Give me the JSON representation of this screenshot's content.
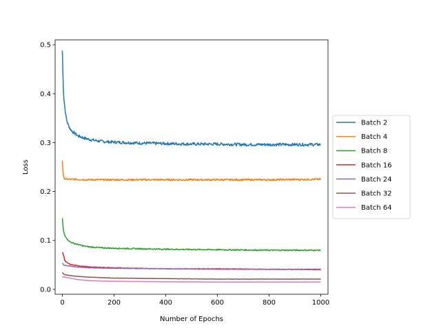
{
  "chart_data": {
    "type": "line",
    "xlabel": "Number of Epochs",
    "ylabel": "Loss",
    "xlim": [
      -28,
      1028
    ],
    "ylim": [
      -0.01,
      0.51
    ],
    "xticks": [
      0,
      200,
      400,
      600,
      800,
      1000
    ],
    "yticks": [
      0.0,
      0.1,
      0.2,
      0.3,
      0.4,
      0.5
    ],
    "ytick_labels": [
      "0.0",
      "0.1",
      "0.2",
      "0.3",
      "0.4",
      "0.5"
    ],
    "grid": false,
    "legend_position": "outside-right",
    "series": [
      {
        "name": "Batch 2",
        "color": "#1f77b4",
        "x": [
          0,
          3,
          6,
          10,
          15,
          20,
          30,
          40,
          50,
          60,
          80,
          100,
          130,
          160,
          200,
          250,
          300,
          400,
          500,
          600,
          700,
          800,
          900,
          1000
        ],
        "values": [
          0.488,
          0.42,
          0.39,
          0.37,
          0.35,
          0.34,
          0.328,
          0.322,
          0.318,
          0.314,
          0.31,
          0.307,
          0.304,
          0.302,
          0.301,
          0.3,
          0.299,
          0.298,
          0.297,
          0.297,
          0.296,
          0.296,
          0.296,
          0.296
        ],
        "noise": 0.003
      },
      {
        "name": "Batch 4",
        "color": "#ff7f0e",
        "x": [
          0,
          3,
          6,
          10,
          20,
          50,
          100,
          200,
          400,
          600,
          800,
          1000
        ],
        "values": [
          0.264,
          0.235,
          0.228,
          0.226,
          0.225,
          0.225,
          0.224,
          0.224,
          0.224,
          0.224,
          0.224,
          0.225
        ],
        "noise": 0.0018
      },
      {
        "name": "Batch 8",
        "color": "#2ca02c",
        "x": [
          0,
          3,
          6,
          10,
          20,
          30,
          50,
          80,
          100,
          150,
          200,
          300,
          400,
          600,
          800,
          1000
        ],
        "values": [
          0.145,
          0.125,
          0.115,
          0.11,
          0.102,
          0.097,
          0.093,
          0.089,
          0.087,
          0.085,
          0.084,
          0.083,
          0.082,
          0.081,
          0.08,
          0.08
        ],
        "noise": 0.0012
      },
      {
        "name": "Batch 16",
        "color": "#d62728",
        "x": [
          0,
          5,
          10,
          20,
          30,
          50,
          80,
          100,
          150,
          200,
          300,
          400,
          600,
          800,
          1000
        ],
        "values": [
          0.076,
          0.07,
          0.058,
          0.054,
          0.051,
          0.049,
          0.047,
          0.046,
          0.045,
          0.044,
          0.043,
          0.042,
          0.042,
          0.041,
          0.041
        ],
        "noise": 0.0006
      },
      {
        "name": "Batch 24",
        "color": "#9467bd",
        "x": [
          0,
          5,
          10,
          20,
          50,
          100,
          200,
          400,
          600,
          800,
          1000
        ],
        "values": [
          0.054,
          0.05,
          0.049,
          0.048,
          0.046,
          0.044,
          0.043,
          0.042,
          0.041,
          0.041,
          0.04
        ],
        "noise": 0.0004
      },
      {
        "name": "Batch 32",
        "color": "#8c564b",
        "x": [
          0,
          5,
          10,
          20,
          50,
          100,
          200,
          400,
          600,
          800,
          1000
        ],
        "values": [
          0.035,
          0.031,
          0.03,
          0.029,
          0.027,
          0.025,
          0.023,
          0.022,
          0.021,
          0.021,
          0.021
        ],
        "noise": 0.0003
      },
      {
        "name": "Batch 64",
        "color": "#e377c2",
        "x": [
          0,
          10,
          20,
          40,
          60,
          80,
          100,
          150,
          200,
          300,
          400,
          600,
          800,
          1000
        ],
        "values": [
          0.026,
          0.025,
          0.024,
          0.022,
          0.02,
          0.019,
          0.018,
          0.017,
          0.0165,
          0.016,
          0.0155,
          0.015,
          0.015,
          0.015
        ],
        "noise": 0.0002
      }
    ]
  }
}
